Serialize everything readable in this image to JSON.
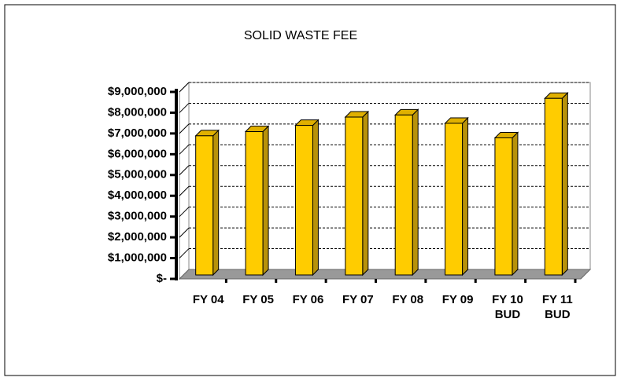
{
  "chart_data": {
    "type": "bar",
    "title": "SOLID WASTE FEE",
    "categories": [
      "FY 04",
      "FY 05",
      "FY 06",
      "FY 07",
      "FY 08",
      "FY 09",
      "FY 10 BUD",
      "FY 11 BUD"
    ],
    "values": [
      6700000,
      6900000,
      7200000,
      7600000,
      7700000,
      7300000,
      6600000,
      8500000
    ],
    "color": "#ffcc00",
    "ylim": [
      0,
      9000000
    ],
    "yticks": [
      {
        "value": 0,
        "label": "$-"
      },
      {
        "value": 1000000,
        "label": "$1,000,000"
      },
      {
        "value": 2000000,
        "label": "$2,000,000"
      },
      {
        "value": 3000000,
        "label": "$3,000,000"
      },
      {
        "value": 4000000,
        "label": "$4,000,000"
      },
      {
        "value": 5000000,
        "label": "$5,000,000"
      },
      {
        "value": 6000000,
        "label": "$6,000,000"
      },
      {
        "value": 7000000,
        "label": "$7,000,000"
      },
      {
        "value": 8000000,
        "label": "$8,000,000"
      },
      {
        "value": 9000000,
        "label": "$9,000,000"
      }
    ],
    "grid": true
  }
}
